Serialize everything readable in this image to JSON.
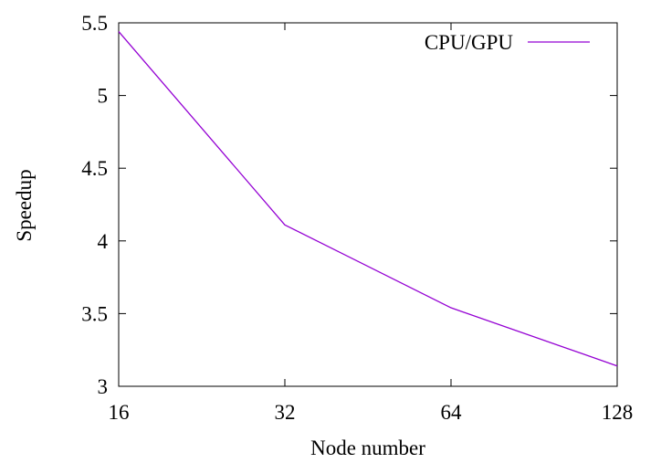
{
  "chart_data": {
    "type": "line",
    "x": [
      16,
      32,
      64,
      128
    ],
    "x_scale": "log2",
    "x_tick_labels": [
      "16",
      "32",
      "64",
      "128"
    ],
    "xlabel": "Node number",
    "ylabel": "Speedup",
    "xlim": [
      16,
      128
    ],
    "ylim": [
      3,
      5.5
    ],
    "y_ticks": [
      3,
      3.5,
      4,
      4.5,
      5,
      5.5
    ],
    "y_tick_labels": [
      "3",
      "3.5",
      "4",
      "4.5",
      "5",
      "5.5"
    ],
    "grid": false,
    "legend_position": "top-right",
    "series": [
      {
        "name": "CPU/GPU",
        "color": "#9400d3",
        "values": [
          5.44,
          4.11,
          3.54,
          3.14
        ]
      }
    ]
  }
}
